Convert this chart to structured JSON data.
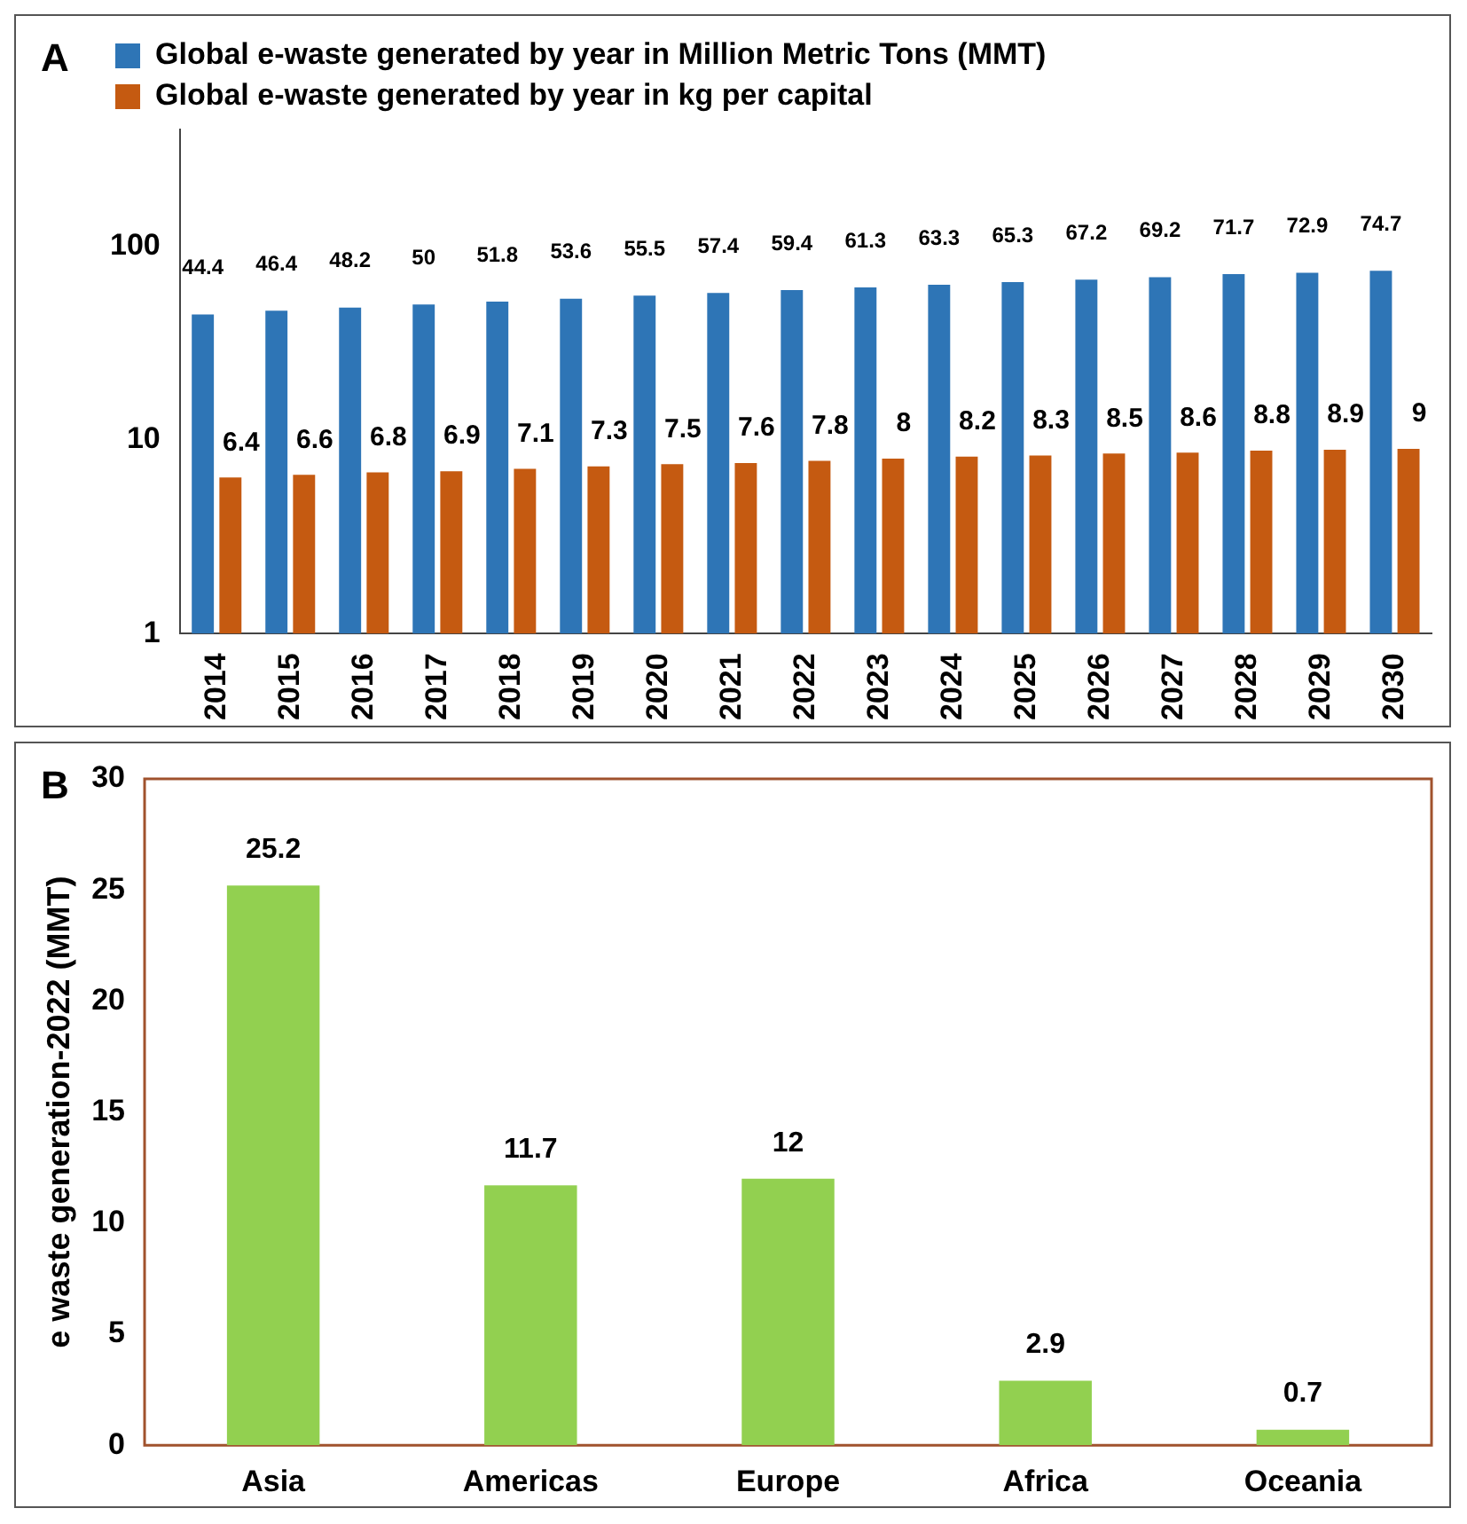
{
  "chart_data": [
    {
      "type": "bar",
      "annotations": [
        "A"
      ],
      "categories": [
        "2014",
        "2015",
        "2016",
        "2017",
        "2018",
        "2019",
        "2020",
        "2021",
        "2022",
        "2023",
        "2024",
        "2025",
        "2026",
        "2027",
        "2028",
        "2029",
        "2030"
      ],
      "series": [
        {
          "name": "Global e-waste generated by year in Million Metric Tons (MMT)",
          "color": "#2e75b6",
          "values": [
            44.4,
            46.4,
            48.2,
            50,
            51.8,
            53.6,
            55.5,
            57.4,
            59.4,
            61.3,
            63.3,
            65.3,
            67.2,
            69.2,
            71.7,
            72.9,
            74.7
          ]
        },
        {
          "name": "Global e-waste generated by year in kg per capital",
          "color": "#c55a11",
          "values": [
            6.4,
            6.6,
            6.8,
            6.9,
            7.1,
            7.3,
            7.5,
            7.6,
            7.8,
            8,
            8.2,
            8.3,
            8.5,
            8.6,
            8.8,
            8.9,
            9
          ]
        }
      ],
      "log": true,
      "ylim": [
        1,
        400
      ],
      "yticks": [
        1,
        10,
        100
      ],
      "grid": false,
      "legend": "top",
      "data_labels": true
    },
    {
      "type": "bar",
      "annotations": [
        "B"
      ],
      "ylabel": "e waste generation-2022 (MMT)",
      "categories": [
        "Asia",
        "Americas",
        "Europe",
        "Africa",
        "Oceania"
      ],
      "values": [
        25.2,
        11.7,
        12,
        2.9,
        0.7
      ],
      "color": "#92d050",
      "ylim": [
        0,
        30
      ],
      "yticks": [
        0,
        5,
        10,
        15,
        20,
        25,
        30
      ],
      "grid": false,
      "legend": false,
      "data_labels": true
    }
  ]
}
